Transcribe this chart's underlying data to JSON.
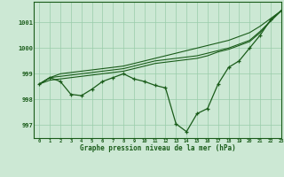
{
  "title": "Graphe pression niveau de la mer (hPa)",
  "background_color": "#cce8d4",
  "plot_bg_color": "#cce8d4",
  "line_color": "#1a5c1a",
  "grid_color": "#99ccaa",
  "text_color": "#1a5c1a",
  "xlim": [
    -0.5,
    23
  ],
  "ylim": [
    996.5,
    1001.8
  ],
  "yticks": [
    997,
    998,
    999,
    1000,
    1001
  ],
  "xticks": [
    0,
    1,
    2,
    3,
    4,
    5,
    6,
    7,
    8,
    9,
    10,
    11,
    12,
    13,
    14,
    15,
    16,
    17,
    18,
    19,
    20,
    21,
    22,
    23
  ],
  "main_series": [
    998.6,
    998.85,
    998.7,
    998.2,
    998.15,
    998.4,
    998.7,
    998.85,
    999.0,
    998.8,
    998.7,
    998.55,
    998.45,
    997.05,
    996.75,
    997.45,
    997.65,
    998.6,
    999.25,
    999.5,
    1000.0,
    1000.5,
    1001.1,
    1001.45
  ],
  "line1": [
    998.6,
    998.85,
    999.0,
    999.05,
    999.1,
    999.15,
    999.2,
    999.25,
    999.3,
    999.4,
    999.5,
    999.6,
    999.7,
    999.8,
    999.9,
    1000.0,
    1000.1,
    1000.2,
    1000.3,
    1000.45,
    1000.6,
    1000.85,
    1001.15,
    1001.45
  ],
  "line2": [
    998.6,
    998.85,
    998.9,
    998.95,
    999.0,
    999.05,
    999.1,
    999.15,
    999.2,
    999.3,
    999.4,
    999.5,
    999.55,
    999.6,
    999.65,
    999.7,
    999.8,
    999.9,
    1000.0,
    1000.15,
    1000.3,
    1000.65,
    1001.05,
    1001.45
  ],
  "line3": [
    998.6,
    998.75,
    998.8,
    998.85,
    998.9,
    998.95,
    999.0,
    999.05,
    999.1,
    999.2,
    999.3,
    999.4,
    999.45,
    999.5,
    999.55,
    999.6,
    999.7,
    999.85,
    999.95,
    1000.1,
    1000.25,
    1000.6,
    1001.05,
    1001.45
  ]
}
